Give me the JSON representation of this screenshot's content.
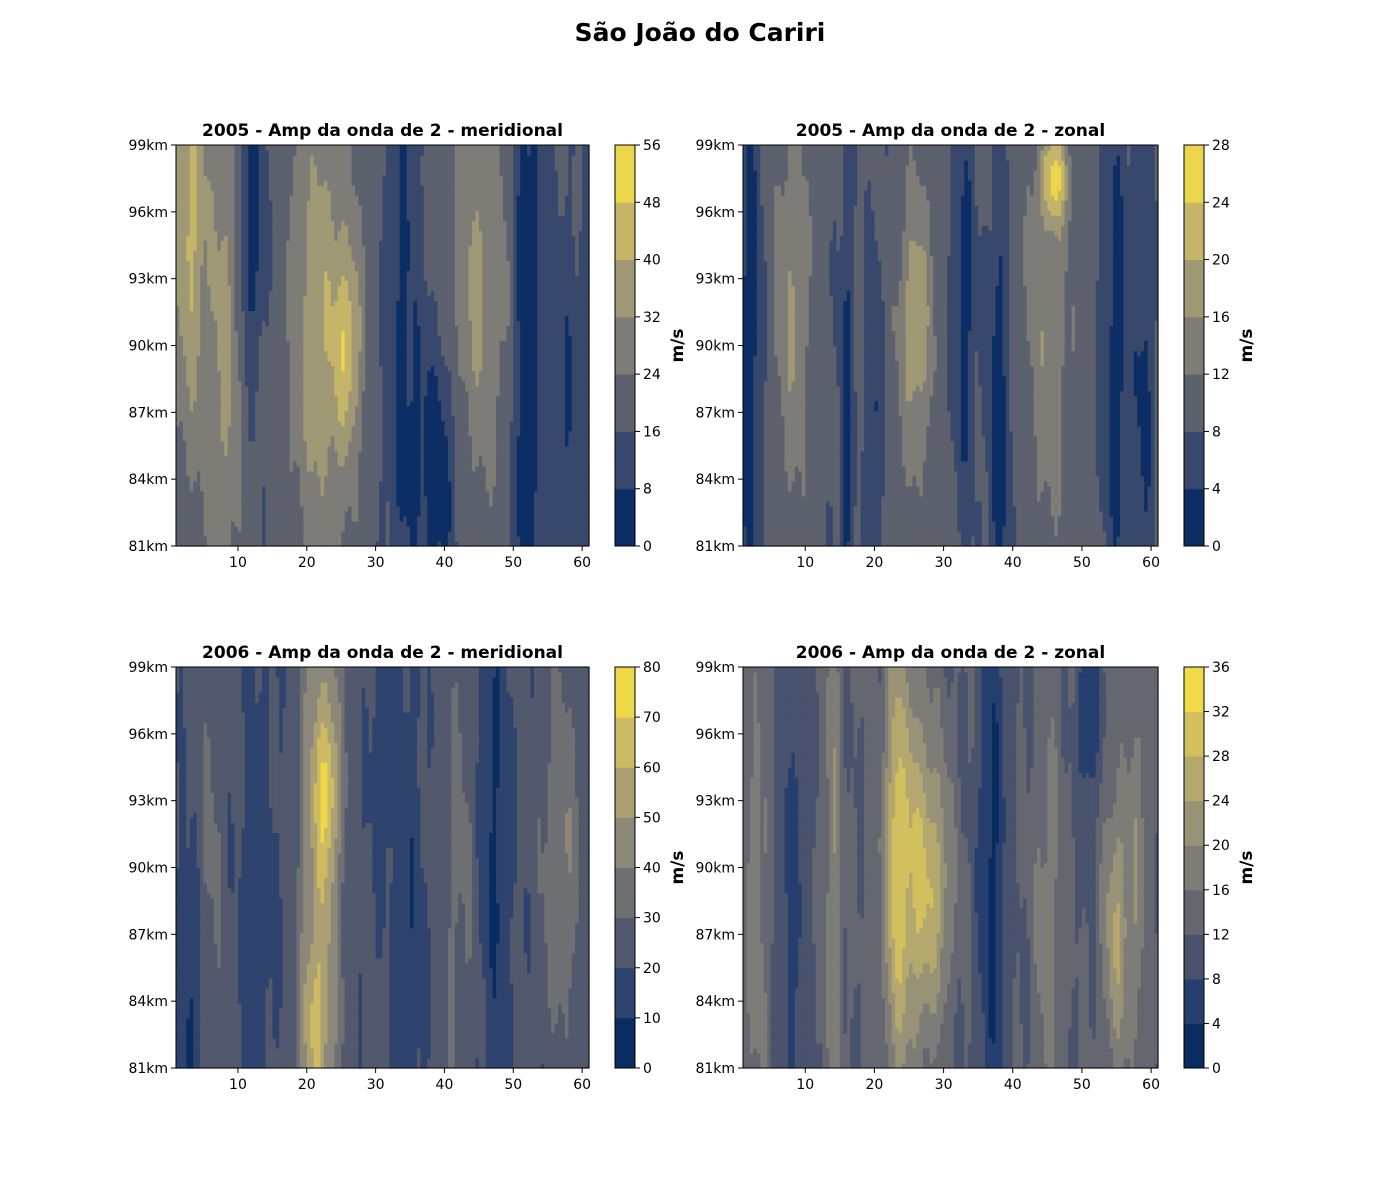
{
  "figure": {
    "title": "São João do Cariri"
  },
  "colors": {
    "cividis_stops": [
      "#00224e",
      "#123570",
      "#3b496c",
      "#575d6d",
      "#707173",
      "#8a8779",
      "#a59c74",
      "#c3b369",
      "#e1cc55",
      "#fee838"
    ]
  },
  "chart_data": [
    {
      "type": "heatmap",
      "title": "2005 - Amp da onda de 2 - meridional",
      "xlabel": "",
      "ylabel": "",
      "xlim": [
        1,
        61
      ],
      "ylim": [
        81,
        99
      ],
      "xticks": [
        10,
        20,
        30,
        40,
        50,
        60
      ],
      "yticks": [
        "81km",
        "84km",
        "87km",
        "90km",
        "93km",
        "96km",
        "99km"
      ],
      "colorbar": {
        "label": "m/s",
        "levels": [
          0,
          8,
          16,
          24,
          32,
          40,
          48,
          56
        ]
      },
      "pattern": {
        "base": 18,
        "bands": [
          {
            "x": 3,
            "w": 2.5,
            "amp": 24,
            "zc": 0.85,
            "zw": 0.6
          },
          {
            "x": 8,
            "w": 2.5,
            "amp": 16,
            "zc": 0.5,
            "zw": 0.7
          },
          {
            "x": 12,
            "w": 1.8,
            "amp": -16,
            "zc": 0.8,
            "zw": 0.35
          },
          {
            "x": 22,
            "w": 4.5,
            "amp": 20,
            "zc": 0.55,
            "zw": 0.6
          },
          {
            "x": 26,
            "w": 2.0,
            "amp": 20,
            "zc": 0.5,
            "zw": 0.25
          },
          {
            "x": 34,
            "w": 2.5,
            "amp": -12,
            "zc": 0.5,
            "zw": 0.8
          },
          {
            "x": 39,
            "w": 3.0,
            "amp": -16,
            "zc": 0.2,
            "zw": 0.35
          },
          {
            "x": 45,
            "w": 4.5,
            "amp": 16,
            "zc": 0.65,
            "zw": 0.5
          },
          {
            "x": 52,
            "w": 2.0,
            "amp": -18,
            "zc": 0.5,
            "zw": 0.9
          },
          {
            "x": 58,
            "w": 3.0,
            "amp": -10,
            "zc": 0.3,
            "zw": 0.5
          }
        ]
      }
    },
    {
      "type": "heatmap",
      "title": "2005 - Amp da onda de 2 - zonal",
      "xlabel": "",
      "ylabel": "",
      "xlim": [
        1,
        61
      ],
      "ylim": [
        81,
        99
      ],
      "xticks": [
        10,
        20,
        30,
        40,
        50,
        60
      ],
      "yticks": [
        "81km",
        "84km",
        "87km",
        "90km",
        "93km",
        "96km",
        "99km"
      ],
      "colorbar": {
        "label": "m/s",
        "levels": [
          0,
          4,
          8,
          12,
          16,
          20,
          24,
          28
        ]
      },
      "pattern": {
        "base": 9,
        "bands": [
          {
            "x": 2,
            "w": 1.5,
            "amp": -8,
            "zc": 0.5,
            "zw": 0.8
          },
          {
            "x": 8,
            "w": 2.5,
            "amp": 7,
            "zc": 0.6,
            "zw": 0.5
          },
          {
            "x": 16,
            "w": 1.0,
            "amp": -7,
            "zc": 0.3,
            "zw": 0.6
          },
          {
            "x": 20,
            "w": 1.0,
            "amp": -6,
            "zc": 0.25,
            "zw": 0.5
          },
          {
            "x": 26,
            "w": 2.5,
            "amp": 10,
            "zc": 0.55,
            "zw": 0.35
          },
          {
            "x": 33,
            "w": 1.5,
            "amp": -7,
            "zc": 0.6,
            "zw": 0.5
          },
          {
            "x": 38,
            "w": 1.5,
            "amp": -8,
            "zc": 0.3,
            "zw": 0.6
          },
          {
            "x": 46,
            "w": 2.0,
            "amp": 14,
            "zc": 0.92,
            "zw": 0.12
          },
          {
            "x": 45,
            "w": 3.5,
            "amp": 6,
            "zc": 0.5,
            "zw": 0.5
          },
          {
            "x": 55,
            "w": 2.0,
            "amp": -7,
            "zc": 0.5,
            "zw": 0.7
          },
          {
            "x": 59,
            "w": 1.5,
            "amp": -6,
            "zc": 0.4,
            "zw": 0.5
          }
        ]
      }
    },
    {
      "type": "heatmap",
      "title": "2006 - Amp da onda de 2 - meridional",
      "xlabel": "",
      "ylabel": "",
      "xlim": [
        1,
        61
      ],
      "ylim": [
        81,
        99
      ],
      "xticks": [
        10,
        20,
        30,
        40,
        50,
        60
      ],
      "yticks": [
        "81km",
        "84km",
        "87km",
        "90km",
        "93km",
        "96km",
        "99km"
      ],
      "colorbar": {
        "label": "m/s",
        "levels": [
          0,
          10,
          20,
          30,
          40,
          50,
          60,
          70,
          80
        ]
      },
      "pattern": {
        "base": 22,
        "bands": [
          {
            "x": 3,
            "w": 2.0,
            "amp": -14,
            "zc": 0.15,
            "zw": 0.35
          },
          {
            "x": 6,
            "w": 2.0,
            "amp": 10,
            "zc": 0.5,
            "zw": 0.6
          },
          {
            "x": 13,
            "w": 2.5,
            "amp": -8,
            "zc": 0.4,
            "zw": 0.6
          },
          {
            "x": 22,
            "w": 3.0,
            "amp": 32,
            "zc": 0.5,
            "zw": 0.9
          },
          {
            "x": 23,
            "w": 1.8,
            "amp": 24,
            "zc": 0.7,
            "zw": 0.2
          },
          {
            "x": 21,
            "w": 2.0,
            "amp": 18,
            "zc": 0.1,
            "zw": 0.2
          },
          {
            "x": 31,
            "w": 1.5,
            "amp": -12,
            "zc": 0.8,
            "zw": 0.3
          },
          {
            "x": 35,
            "w": 2.0,
            "amp": -10,
            "zc": 0.3,
            "zw": 0.7
          },
          {
            "x": 42,
            "w": 3.0,
            "amp": 10,
            "zc": 0.5,
            "zw": 0.8
          },
          {
            "x": 47,
            "w": 2.0,
            "amp": -14,
            "zc": 0.6,
            "zw": 0.7
          },
          {
            "x": 57,
            "w": 3.0,
            "amp": 18,
            "zc": 0.55,
            "zw": 0.45
          }
        ]
      }
    },
    {
      "type": "heatmap",
      "title": "2006 - Amp da onda de 2 - zonal",
      "xlabel": "",
      "ylabel": "",
      "xlim": [
        1,
        61
      ],
      "ylim": [
        81,
        99
      ],
      "xticks": [
        10,
        20,
        30,
        40,
        50,
        60
      ],
      "yticks": [
        "81km",
        "84km",
        "87km",
        "90km",
        "93km",
        "96km",
        "99km"
      ],
      "colorbar": {
        "label": "m/s",
        "levels": [
          0,
          4,
          8,
          12,
          16,
          20,
          24,
          28,
          32,
          36
        ]
      },
      "pattern": {
        "base": 12,
        "bands": [
          {
            "x": 3,
            "w": 2.0,
            "amp": 6,
            "zc": 0.4,
            "zw": 0.6
          },
          {
            "x": 8,
            "w": 2.0,
            "amp": -6,
            "zc": 0.4,
            "zw": 0.6
          },
          {
            "x": 14,
            "w": 1.2,
            "amp": 8,
            "zc": 0.5,
            "zw": 0.8
          },
          {
            "x": 25,
            "w": 3.5,
            "amp": 16,
            "zc": 0.5,
            "zw": 0.5
          },
          {
            "x": 29,
            "w": 2.5,
            "amp": 10,
            "zc": 0.45,
            "zw": 0.3
          },
          {
            "x": 23,
            "w": 1.2,
            "amp": 8,
            "zc": 0.6,
            "zw": 0.7
          },
          {
            "x": 37,
            "w": 2.0,
            "amp": -9,
            "zc": 0.5,
            "zw": 0.8
          },
          {
            "x": 45,
            "w": 2.0,
            "amp": 6,
            "zc": 0.4,
            "zw": 0.6
          },
          {
            "x": 51,
            "w": 1.5,
            "amp": -9,
            "zc": 0.9,
            "zw": 0.25
          },
          {
            "x": 55,
            "w": 2.0,
            "amp": 12,
            "zc": 0.35,
            "zw": 0.35
          },
          {
            "x": 58,
            "w": 1.5,
            "amp": 6,
            "zc": 0.5,
            "zw": 0.5
          }
        ]
      }
    }
  ]
}
